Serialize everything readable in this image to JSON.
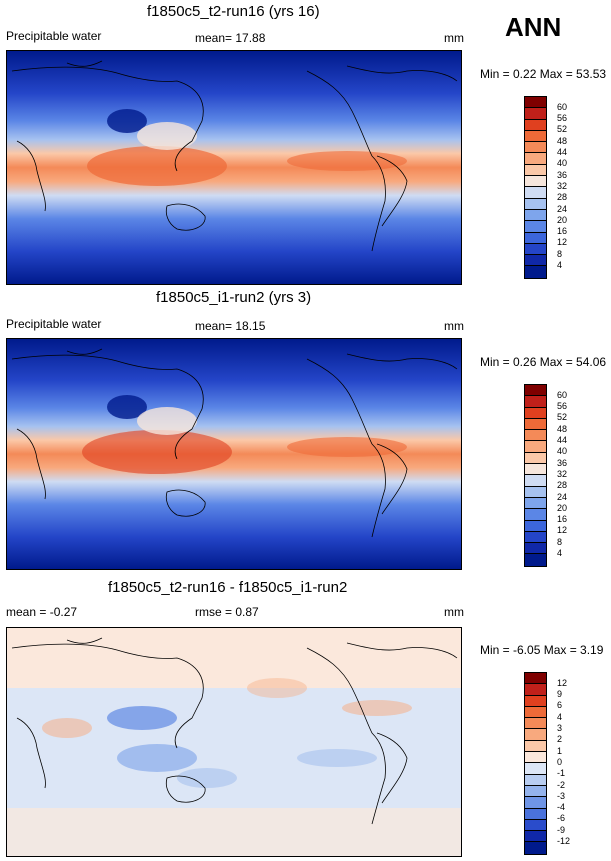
{
  "header": {
    "season": "ANN"
  },
  "panels": [
    {
      "title": "f1850c5_t2-run16 (yrs 16)",
      "left_label": "Precipitable water",
      "mean_label": "mean=  17.88",
      "units": "mm",
      "minmax": "Min =   0.22 Max =  53.53",
      "colorbar": {
        "levels": [
          "60",
          "56",
          "52",
          "48",
          "44",
          "40",
          "36",
          "32",
          "28",
          "24",
          "20",
          "16",
          "12",
          "8",
          "4"
        ],
        "colors": [
          "#7f0000",
          "#c0201a",
          "#e0401f",
          "#ee6a38",
          "#f48a58",
          "#f8a97e",
          "#fbc8a8",
          "#f6e6dc",
          "#cfdcf3",
          "#a6c2f0",
          "#7ea5ec",
          "#5b86e6",
          "#3c66dc",
          "#2445c8",
          "#1028a8",
          "#001a8c"
        ]
      }
    },
    {
      "title": "f1850c5_i1-run2 (yrs 3)",
      "left_label": "Precipitable water",
      "mean_label": "mean=  18.15",
      "units": "mm",
      "minmax": "Min =   0.26 Max =  54.06",
      "colorbar": {
        "levels": [
          "60",
          "56",
          "52",
          "48",
          "44",
          "40",
          "36",
          "32",
          "28",
          "24",
          "20",
          "16",
          "12",
          "8",
          "4"
        ],
        "colors": [
          "#7f0000",
          "#c0201a",
          "#e0401f",
          "#ee6a38",
          "#f48a58",
          "#f8a97e",
          "#fbc8a8",
          "#f6e6dc",
          "#cfdcf3",
          "#a6c2f0",
          "#7ea5ec",
          "#5b86e6",
          "#3c66dc",
          "#2445c8",
          "#1028a8",
          "#001a8c"
        ]
      }
    },
    {
      "title": "f1850c5_t2-run16 - f1850c5_i1-run2",
      "left_label": "mean =  -0.27",
      "mean_label": "rmse =   0.87",
      "units": "mm",
      "minmax": "Min =  -6.05 Max =   3.19",
      "colorbar": {
        "levels": [
          "12",
          "9",
          "6",
          "4",
          "3",
          "2",
          "1",
          "0",
          "-1",
          "-2",
          "-3",
          "-4",
          "-6",
          "-9",
          "-12"
        ],
        "colors": [
          "#7f0000",
          "#c0201a",
          "#e0401f",
          "#ee6a38",
          "#f48a58",
          "#f8a97e",
          "#fbc8a8",
          "#fbe8dc",
          "#dce6f6",
          "#b8cdf1",
          "#94b3ec",
          "#6f95e6",
          "#4a72dc",
          "#2a4ccb",
          "#1028a8",
          "#001a8c"
        ]
      }
    }
  ],
  "chart_data": [
    {
      "type": "heatmap",
      "title": "f1850c5_t2-run16 (yrs 16)",
      "variable": "Precipitable water",
      "units": "mm",
      "mean": 17.88,
      "min": 0.22,
      "max": 53.53,
      "contour_levels": [
        4,
        8,
        12,
        16,
        20,
        24,
        28,
        32,
        36,
        40,
        44,
        48,
        52,
        56,
        60
      ]
    },
    {
      "type": "heatmap",
      "title": "f1850c5_i1-run2 (yrs 3)",
      "variable": "Precipitable water",
      "units": "mm",
      "mean": 18.15,
      "min": 0.26,
      "max": 54.06,
      "contour_levels": [
        4,
        8,
        12,
        16,
        20,
        24,
        28,
        32,
        36,
        40,
        44,
        48,
        52,
        56,
        60
      ]
    },
    {
      "type": "heatmap",
      "title": "f1850c5_t2-run16 - f1850c5_i1-run2",
      "units": "mm",
      "mean": -0.27,
      "rmse": 0.87,
      "min": -6.05,
      "max": 3.19,
      "contour_levels": [
        -12,
        -9,
        -6,
        -4,
        -3,
        -2,
        -1,
        0,
        1,
        2,
        3,
        4,
        6,
        9,
        12
      ]
    }
  ]
}
